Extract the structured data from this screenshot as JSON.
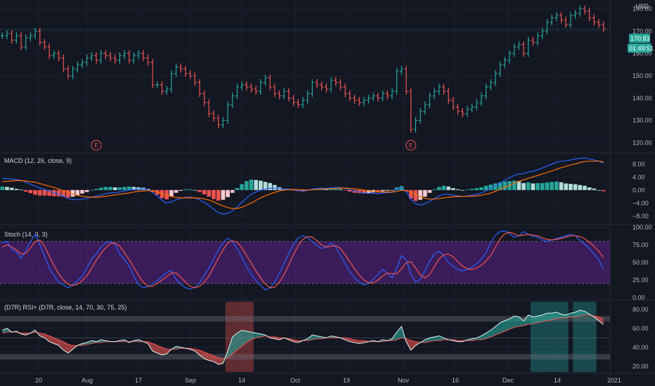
{
  "currency": "USD",
  "price_tag": {
    "value": "170.83",
    "countdown": "01:49:51",
    "color": "#26a69a"
  },
  "earnings_marker": "E",
  "x_labels": [
    "20",
    "Aug",
    "17",
    "Sep",
    "14",
    "Oct",
    "19",
    "Nov",
    "16",
    "Dec",
    "14",
    "2021"
  ],
  "colors": {
    "up": "#26a69a",
    "down": "#ef5350",
    "macd": "#2962ff",
    "signal": "#ff6d00",
    "stoch_k": "#2962ff",
    "stoch_d": "#ef5350",
    "band": "#4a1f6e",
    "rsi_line": "#e0f2f1"
  },
  "chart_data": [
    {
      "type": "candlestick",
      "title": "",
      "y_ticks": [
        120,
        130,
        140,
        150,
        160,
        170,
        180
      ],
      "ylim": [
        116,
        184
      ],
      "last_price": 170.83,
      "close": [
        168,
        169,
        166,
        168,
        163,
        167,
        168,
        170,
        165,
        163,
        159,
        160,
        158,
        153,
        150,
        153,
        155,
        156,
        158,
        159,
        157,
        160,
        159,
        158,
        157,
        159,
        160,
        157,
        159,
        160,
        158,
        156,
        146,
        146,
        143,
        144,
        151,
        154,
        153,
        151,
        150,
        147,
        142,
        138,
        133,
        131,
        128,
        130,
        137,
        141,
        145,
        146,
        145,
        144,
        143,
        147,
        149,
        145,
        142,
        141,
        143,
        140,
        138,
        137,
        139,
        142,
        147,
        146,
        145,
        144,
        148,
        147,
        145,
        142,
        140,
        139,
        138,
        139,
        140,
        141,
        140,
        142,
        141,
        143,
        152,
        153,
        143,
        126,
        130,
        134,
        137,
        141,
        143,
        145,
        143,
        139,
        136,
        134,
        133,
        135,
        136,
        138,
        141,
        145,
        147,
        151,
        155,
        157,
        160,
        163,
        164,
        160,
        166,
        165,
        168,
        170,
        174,
        176,
        177,
        175,
        173,
        177,
        178,
        180,
        179,
        176,
        174,
        173,
        171
      ],
      "earnings_index": [
        20,
        87
      ]
    },
    {
      "type": "histogram_line",
      "title": "MACD (12, 26, close, 9)",
      "y_ticks": [
        8.0,
        4.0,
        0.0,
        -4.0,
        -8.0
      ],
      "y_labels": [
        "8.00",
        "4.00",
        "0.00",
        "−4.00",
        "−8.00"
      ],
      "ylim": [
        -10,
        11
      ],
      "series": [
        {
          "values": [
            3.5,
            3.5,
            3.4,
            3.2,
            3.0,
            2.4,
            1.8,
            1.2,
            0.6,
            0.2,
            -0.3,
            -0.8,
            -1.3,
            -1.9,
            -2.6,
            -2.9,
            -3.0,
            -2.8,
            -2.6,
            -2.2,
            -1.9,
            -1.5,
            -1.1,
            -0.9,
            -0.8,
            -0.6,
            -0.3,
            0.0,
            0.2,
            0.3,
            0.3,
            0.1,
            -0.8,
            -1.8,
            -3.2,
            -4.0,
            -3.6,
            -3.0,
            -2.6,
            -2.2,
            -2.2,
            -2.4,
            -3.0,
            -3.8,
            -4.8,
            -5.9,
            -7.0,
            -7.4,
            -7.2,
            -6.4,
            -5.2,
            -3.8,
            -2.4,
            -1.3,
            -0.6,
            0.0,
            0.3,
            0.6,
            0.6,
            0.4,
            0.3,
            0.3,
            0.1,
            -0.2,
            -0.3,
            -0.1,
            0.3,
            0.5,
            0.6,
            0.5,
            0.7,
            0.9,
            0.8,
            0.5,
            0.1,
            -0.3,
            -0.6,
            -0.9,
            -1.0,
            -1.0,
            -1.1,
            -0.9,
            -0.8,
            -0.7,
            0.3,
            0.9,
            -0.5,
            -2.9,
            -4.2,
            -4.6,
            -4.2,
            -3.5,
            -2.6,
            -1.8,
            -1.3,
            -1.3,
            -1.6,
            -1.8,
            -2.0,
            -1.8,
            -1.6,
            -1.3,
            -0.9,
            -0.2,
            0.5,
            1.3,
            2.2,
            3.0,
            3.8,
            4.5,
            5.0,
            5.0,
            5.6,
            5.8,
            6.3,
            6.8,
            7.4,
            8.0,
            8.6,
            8.9,
            9.0,
            9.3,
            9.6,
            9.8,
            9.9,
            9.6,
            9.3,
            8.9,
            8.4
          ]
        },
        {
          "values": [
            2.6,
            2.7,
            2.8,
            2.9,
            2.9,
            2.8,
            2.6,
            2.4,
            2.0,
            1.6,
            1.2,
            0.8,
            0.3,
            -0.2,
            -0.7,
            -1.2,
            -1.6,
            -1.9,
            -2.1,
            -2.2,
            -2.2,
            -2.1,
            -1.9,
            -1.7,
            -1.5,
            -1.3,
            -1.1,
            -0.9,
            -0.6,
            -0.4,
            -0.3,
            -0.2,
            -0.3,
            -0.6,
            -1.1,
            -1.6,
            -2.0,
            -2.3,
            -2.4,
            -2.4,
            -2.4,
            -2.4,
            -2.5,
            -2.7,
            -3.1,
            -3.6,
            -4.3,
            -4.9,
            -5.4,
            -5.7,
            -5.7,
            -5.3,
            -4.7,
            -4.0,
            -3.2,
            -2.4,
            -1.8,
            -1.2,
            -0.7,
            -0.3,
            0.0,
            0.1,
            0.2,
            0.1,
            0.1,
            0.0,
            0.1,
            0.2,
            0.3,
            0.3,
            0.4,
            0.5,
            0.6,
            0.6,
            0.5,
            0.4,
            0.2,
            0.0,
            -0.2,
            -0.4,
            -0.5,
            -0.6,
            -0.6,
            -0.6,
            -0.4,
            -0.1,
            -0.2,
            -0.7,
            -1.4,
            -2.1,
            -2.5,
            -2.8,
            -2.8,
            -2.6,
            -2.4,
            -2.2,
            -2.1,
            -2.0,
            -2.0,
            -1.9,
            -1.9,
            -1.8,
            -1.6,
            -1.3,
            -0.9,
            -0.4,
            0.2,
            0.8,
            1.5,
            2.1,
            2.7,
            3.2,
            3.6,
            4.1,
            4.5,
            5.0,
            5.4,
            5.9,
            6.4,
            6.9,
            7.3,
            7.7,
            8.1,
            8.5,
            8.8,
            8.9,
            8.9,
            8.9,
            8.7
          ]
        }
      ]
    },
    {
      "type": "line",
      "title": "Stoch (14, 3, 3)",
      "y_ticks": [
        100.0,
        75.0,
        50.0,
        25.0,
        0.0
      ],
      "y_labels": [
        "100.00",
        "75.00",
        "50.00",
        "25.00",
        "0.00"
      ],
      "ylim": [
        -2,
        102
      ],
      "band": [
        20,
        80
      ],
      "series": [
        {
          "values": [
            78,
            80,
            69,
            65,
            56,
            67,
            80,
            90,
            75,
            59,
            42,
            31,
            22,
            18,
            14,
            18,
            24,
            30,
            42,
            55,
            62,
            72,
            78,
            80,
            76,
            62,
            54,
            45,
            30,
            18,
            14,
            16,
            19,
            24,
            30,
            36,
            38,
            26,
            19,
            14,
            12,
            15,
            21,
            32,
            42,
            55,
            68,
            78,
            85,
            80,
            70,
            57,
            44,
            33,
            24,
            17,
            11,
            14,
            22,
            35,
            49,
            63,
            76,
            85,
            88,
            85,
            80,
            74,
            70,
            72,
            78,
            72,
            60,
            48,
            37,
            28,
            22,
            18,
            20,
            26,
            33,
            40,
            34,
            28,
            42,
            60,
            54,
            33,
            22,
            26,
            38,
            52,
            62,
            66,
            60,
            50,
            44,
            40,
            38,
            40,
            43,
            48,
            55,
            64,
            78,
            89,
            94,
            95,
            91,
            86,
            88,
            94,
            90,
            87,
            86,
            82,
            80,
            82,
            84,
            86,
            88,
            90,
            88,
            82,
            76,
            70,
            62,
            54,
            40
          ]
        },
        {
          "values": [
            72,
            75,
            72,
            68,
            62,
            63,
            71,
            80,
            82,
            73,
            59,
            46,
            34,
            25,
            19,
            17,
            19,
            24,
            31,
            42,
            53,
            63,
            71,
            77,
            78,
            73,
            64,
            54,
            43,
            32,
            22,
            16,
            16,
            20,
            25,
            30,
            35,
            35,
            29,
            22,
            16,
            14,
            16,
            22,
            31,
            43,
            56,
            68,
            78,
            81,
            79,
            71,
            60,
            49,
            38,
            28,
            19,
            14,
            15,
            22,
            33,
            47,
            61,
            74,
            83,
            87,
            86,
            81,
            75,
            72,
            73,
            74,
            70,
            61,
            51,
            41,
            32,
            25,
            21,
            21,
            25,
            31,
            35,
            34,
            34,
            41,
            50,
            51,
            42,
            32,
            28,
            33,
            44,
            55,
            61,
            62,
            58,
            51,
            45,
            41,
            40,
            42,
            46,
            52,
            60,
            72,
            84,
            91,
            93,
            91,
            88,
            89,
            90,
            89,
            88,
            85,
            83,
            82,
            83,
            84,
            86,
            88,
            88,
            87,
            84,
            79,
            73,
            66,
            57
          ]
        }
      ]
    },
    {
      "type": "area_line",
      "title": "(D7R) RSI+ (D7R, close, 14, 70, 30, 75, 25)",
      "y_ticks": [
        80.0,
        60.0,
        40.0,
        20.0
      ],
      "y_labels": [
        "80.00",
        "60.00",
        "40.00",
        "20.00"
      ],
      "ylim": [
        14,
        88
      ],
      "levels": [
        70,
        30
      ],
      "series": [
        {
          "values": [
            58,
            60,
            56,
            57,
            54,
            53,
            55,
            58,
            52,
            50,
            46,
            44,
            42,
            37,
            34,
            38,
            42,
            44,
            45,
            47,
            46,
            48,
            47,
            46,
            46,
            47,
            48,
            45,
            47,
            48,
            46,
            44,
            36,
            34,
            32,
            33,
            38,
            41,
            40,
            39,
            38,
            36,
            32,
            28,
            26,
            25,
            22,
            23,
            36,
            51,
            55,
            58,
            57,
            56,
            55,
            54,
            53,
            50,
            49,
            48,
            50,
            48,
            46,
            45,
            47,
            49,
            53,
            52,
            51,
            50,
            52,
            51,
            50,
            48,
            46,
            45,
            44,
            45,
            46,
            47,
            46,
            48,
            47,
            49,
            56,
            62,
            46,
            37,
            42,
            45,
            48,
            50,
            51,
            52,
            50,
            48,
            47,
            46,
            46,
            48,
            49,
            50,
            52,
            55,
            58,
            62,
            66,
            68,
            70,
            73,
            72,
            68,
            74,
            72,
            73,
            74,
            76,
            76,
            77,
            75,
            74,
            76,
            77,
            79,
            78,
            75,
            72,
            68,
            64
          ]
        },
        {
          "values": [
            55,
            56,
            56,
            56,
            55,
            55,
            55,
            56,
            55,
            54,
            52,
            50,
            48,
            46,
            43,
            42,
            42,
            42,
            43,
            44,
            45,
            45,
            46,
            46,
            46,
            46,
            46,
            46,
            46,
            46,
            46,
            46,
            44,
            42,
            40,
            38,
            38,
            38,
            39,
            39,
            39,
            38,
            37,
            35,
            33,
            31,
            29,
            28,
            29,
            33,
            37,
            41,
            45,
            48,
            50,
            51,
            52,
            51,
            51,
            50,
            50,
            49,
            48,
            47,
            47,
            47,
            48,
            49,
            49,
            50,
            50,
            50,
            50,
            50,
            49,
            48,
            47,
            47,
            46,
            46,
            46,
            46,
            47,
            47,
            48,
            50,
            49,
            47,
            46,
            45,
            45,
            46,
            47,
            47,
            48,
            48,
            48,
            47,
            47,
            47,
            47,
            48,
            48,
            49,
            51,
            53,
            55,
            57,
            59,
            61,
            62,
            63,
            64,
            65,
            66,
            67,
            68,
            69,
            70,
            71,
            71,
            72,
            72,
            73,
            74,
            74,
            73,
            72,
            70
          ]
        }
      ],
      "highlight_zones": [
        [
          48,
          53,
          "down"
        ],
        [
          113,
          116,
          "up"
        ],
        [
          117,
          120,
          "up"
        ],
        [
          122,
          126,
          "up"
        ]
      ]
    }
  ]
}
